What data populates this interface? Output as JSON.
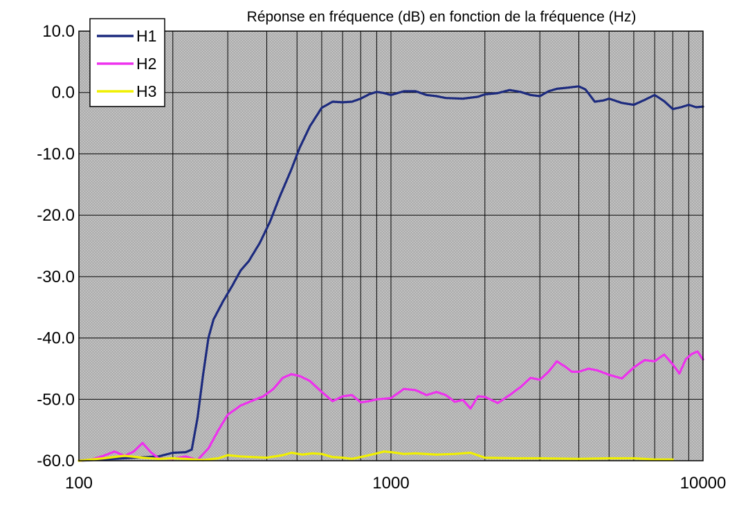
{
  "chart_data": {
    "type": "line",
    "title": "Réponse en fréquence (dB) en fonction de la fréquence (Hz)",
    "xlabel": "",
    "ylabel": "",
    "x_scale": "log",
    "xlim": [
      100,
      10000
    ],
    "ylim": [
      -60,
      10
    ],
    "x_ticks": [
      100,
      1000,
      10000
    ],
    "x_tick_labels": [
      "100",
      "1000",
      "10000"
    ],
    "y_ticks": [
      10,
      0,
      -10,
      -20,
      -30,
      -40,
      -50,
      -60
    ],
    "y_tick_labels": [
      "10.0",
      "0.0",
      "-10.0",
      "-20.0",
      "-30.0",
      "-40.0",
      "-50.0",
      "-60.0"
    ],
    "grid": true,
    "plot_background": "#b8b8b8",
    "legend": {
      "position": "top-left"
    },
    "series": [
      {
        "name": "H1",
        "color": "#1c2a7e",
        "points": [
          [
            100,
            -60
          ],
          [
            120,
            -59.8
          ],
          [
            150,
            -59.5
          ],
          [
            180,
            -59.3
          ],
          [
            200,
            -58.7
          ],
          [
            220,
            -58.6
          ],
          [
            230,
            -58.2
          ],
          [
            240,
            -53
          ],
          [
            250,
            -46
          ],
          [
            260,
            -40
          ],
          [
            270,
            -37
          ],
          [
            290,
            -34
          ],
          [
            310,
            -31.5
          ],
          [
            330,
            -29
          ],
          [
            350,
            -27.5
          ],
          [
            380,
            -24.5
          ],
          [
            410,
            -21
          ],
          [
            440,
            -17
          ],
          [
            480,
            -12.5
          ],
          [
            510,
            -9
          ],
          [
            550,
            -5.5
          ],
          [
            600,
            -2.5
          ],
          [
            650,
            -1.5
          ],
          [
            700,
            -1.6
          ],
          [
            750,
            -1.5
          ],
          [
            800,
            -1
          ],
          [
            850,
            -0.3
          ],
          [
            900,
            0.1
          ],
          [
            950,
            -0.1
          ],
          [
            1000,
            -0.4
          ],
          [
            1100,
            0.2
          ],
          [
            1200,
            0.2
          ],
          [
            1300,
            -0.4
          ],
          [
            1400,
            -0.6
          ],
          [
            1500,
            -0.9
          ],
          [
            1700,
            -1.0
          ],
          [
            1900,
            -0.7
          ],
          [
            2000,
            -0.3
          ],
          [
            2200,
            -0.1
          ],
          [
            2400,
            0.4
          ],
          [
            2600,
            0.1
          ],
          [
            2800,
            -0.4
          ],
          [
            3000,
            -0.6
          ],
          [
            3200,
            0.2
          ],
          [
            3400,
            0.6
          ],
          [
            3700,
            0.8
          ],
          [
            4000,
            1.0
          ],
          [
            4200,
            0.5
          ],
          [
            4500,
            -1.5
          ],
          [
            4800,
            -1.3
          ],
          [
            5000,
            -1.0
          ],
          [
            5500,
            -1.7
          ],
          [
            6000,
            -2.0
          ],
          [
            6500,
            -1.2
          ],
          [
            7000,
            -0.4
          ],
          [
            7500,
            -1.4
          ],
          [
            8000,
            -2.7
          ],
          [
            8500,
            -2.4
          ],
          [
            9000,
            -2.0
          ],
          [
            9500,
            -2.4
          ],
          [
            10000,
            -2.3
          ]
        ]
      },
      {
        "name": "H2",
        "color": "#ee30ee",
        "points": [
          [
            100,
            -60
          ],
          [
            110,
            -59.8
          ],
          [
            120,
            -59.2
          ],
          [
            130,
            -58.5
          ],
          [
            140,
            -59.2
          ],
          [
            150,
            -58.5
          ],
          [
            160,
            -57.1
          ],
          [
            170,
            -58.6
          ],
          [
            180,
            -59.6
          ],
          [
            200,
            -59.7
          ],
          [
            220,
            -59.3
          ],
          [
            240,
            -59.9
          ],
          [
            260,
            -58
          ],
          [
            280,
            -55
          ],
          [
            300,
            -52.5
          ],
          [
            330,
            -51
          ],
          [
            360,
            -50.2
          ],
          [
            390,
            -49.5
          ],
          [
            420,
            -48.3
          ],
          [
            450,
            -46.5
          ],
          [
            480,
            -45.9
          ],
          [
            510,
            -46.2
          ],
          [
            550,
            -47
          ],
          [
            600,
            -48.8
          ],
          [
            650,
            -50.3
          ],
          [
            700,
            -49.5
          ],
          [
            750,
            -49.3
          ],
          [
            800,
            -50.5
          ],
          [
            850,
            -50.3
          ],
          [
            900,
            -50
          ],
          [
            1000,
            -49.8
          ],
          [
            1100,
            -48.3
          ],
          [
            1200,
            -48.5
          ],
          [
            1300,
            -49.3
          ],
          [
            1400,
            -48.8
          ],
          [
            1500,
            -49.3
          ],
          [
            1600,
            -50.4
          ],
          [
            1700,
            -50.1
          ],
          [
            1800,
            -51.5
          ],
          [
            1900,
            -49.5
          ],
          [
            2000,
            -49.6
          ],
          [
            2200,
            -50.6
          ],
          [
            2400,
            -49.3
          ],
          [
            2600,
            -48
          ],
          [
            2800,
            -46.5
          ],
          [
            3000,
            -46.8
          ],
          [
            3200,
            -45.5
          ],
          [
            3400,
            -43.8
          ],
          [
            3600,
            -44.6
          ],
          [
            3800,
            -45.5
          ],
          [
            4000,
            -45.5
          ],
          [
            4300,
            -45
          ],
          [
            4600,
            -45.3
          ],
          [
            5000,
            -46
          ],
          [
            5500,
            -46.6
          ],
          [
            6000,
            -44.8
          ],
          [
            6500,
            -43.6
          ],
          [
            7000,
            -43.8
          ],
          [
            7500,
            -42.7
          ],
          [
            8000,
            -44.3
          ],
          [
            8400,
            -45.8
          ],
          [
            8800,
            -43.5
          ],
          [
            9200,
            -42.6
          ],
          [
            9600,
            -42.2
          ],
          [
            10000,
            -43.5
          ]
        ]
      },
      {
        "name": "H3",
        "color": "#f0f000",
        "points": [
          [
            100,
            -60
          ],
          [
            120,
            -59.6
          ],
          [
            140,
            -59.2
          ],
          [
            160,
            -59.5
          ],
          [
            180,
            -59.7
          ],
          [
            200,
            -59.6
          ],
          [
            220,
            -59.7
          ],
          [
            250,
            -59.9
          ],
          [
            280,
            -59.6
          ],
          [
            300,
            -59.1
          ],
          [
            330,
            -59.3
          ],
          [
            360,
            -59.4
          ],
          [
            400,
            -59.5
          ],
          [
            450,
            -59.1
          ],
          [
            480,
            -58.7
          ],
          [
            520,
            -59.0
          ],
          [
            560,
            -58.8
          ],
          [
            600,
            -58.9
          ],
          [
            650,
            -59.4
          ],
          [
            700,
            -59.5
          ],
          [
            750,
            -59.7
          ],
          [
            800,
            -59.4
          ],
          [
            900,
            -58.8
          ],
          [
            950,
            -58.5
          ],
          [
            1000,
            -58.6
          ],
          [
            1100,
            -58.9
          ],
          [
            1200,
            -58.8
          ],
          [
            1400,
            -59.0
          ],
          [
            1600,
            -58.9
          ],
          [
            1800,
            -58.7
          ],
          [
            2000,
            -59.5
          ],
          [
            2500,
            -59.6
          ],
          [
            3000,
            -59.6
          ],
          [
            4000,
            -59.7
          ],
          [
            5000,
            -59.6
          ],
          [
            6000,
            -59.6
          ],
          [
            7000,
            -59.8
          ],
          [
            8000,
            -59.8
          ]
        ]
      }
    ]
  }
}
